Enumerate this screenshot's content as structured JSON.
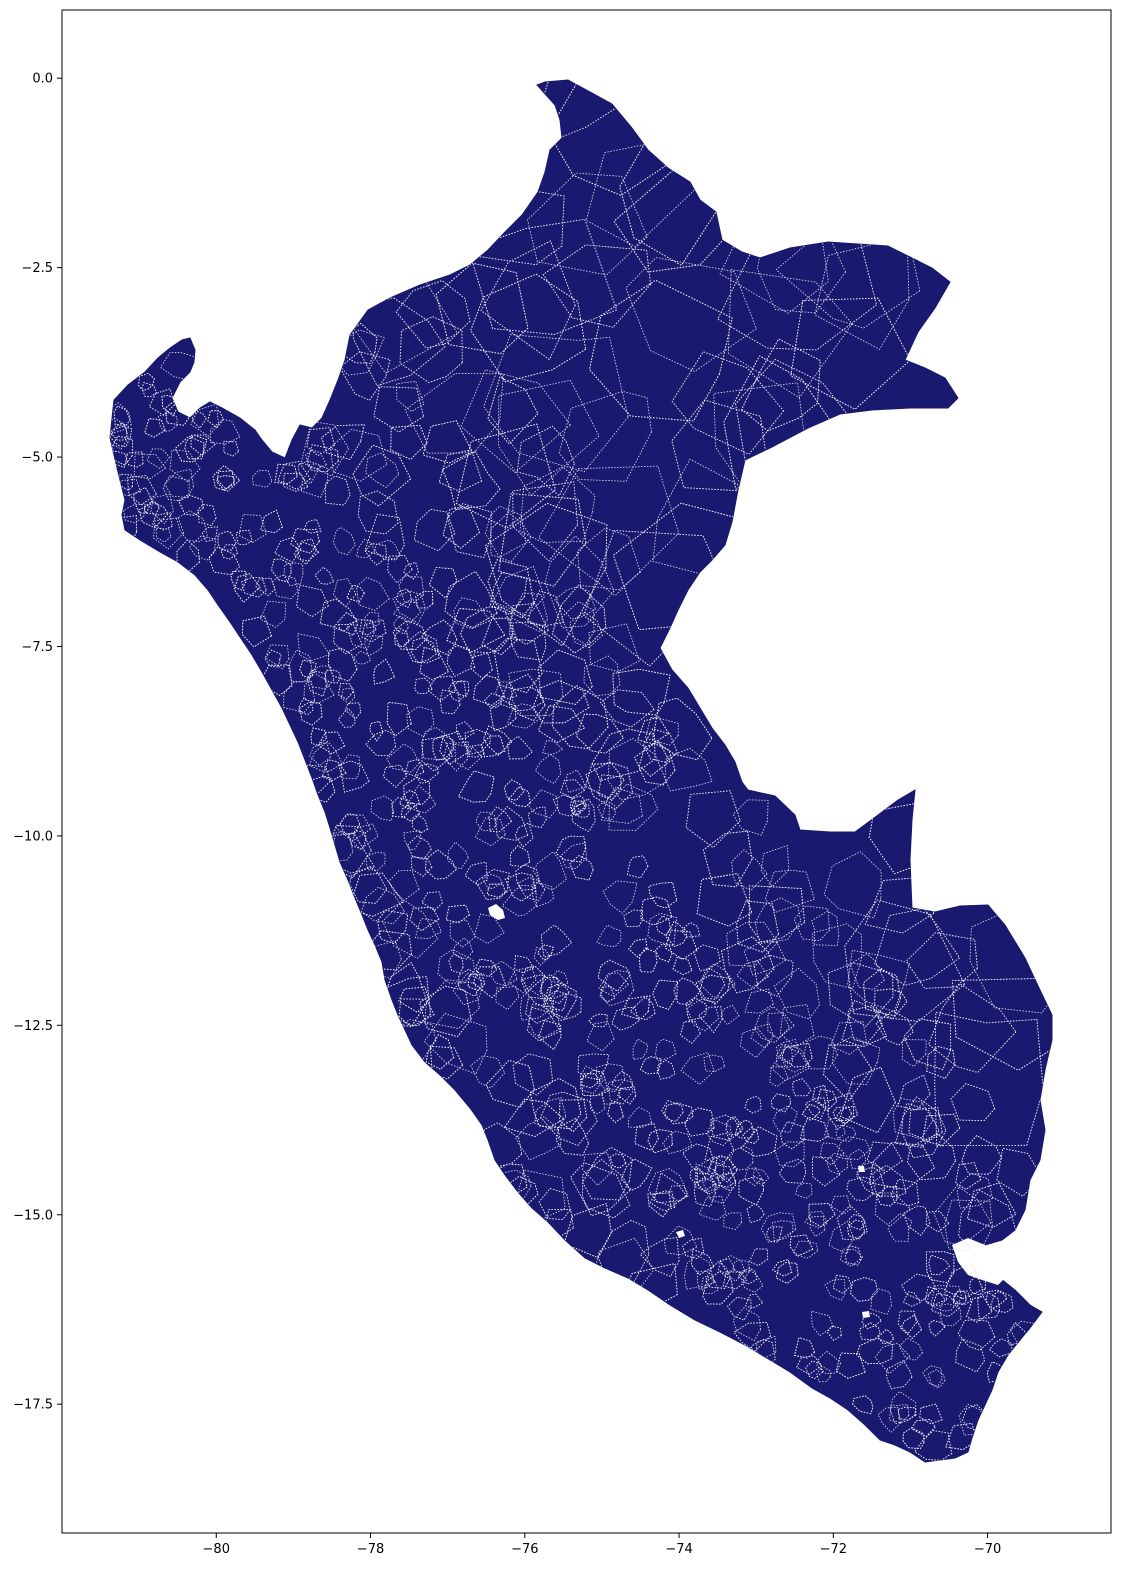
{
  "map": {
    "type": "choropleth-boundaries",
    "fill_color": "#191970",
    "boundary_color": "#e8e8f0",
    "boundary_style": "dotted",
    "background": "#ffffff",
    "grid": false,
    "legend": false,
    "xlim": [
      -82.0,
      -68.4
    ],
    "ylim": [
      -19.2,
      0.9
    ],
    "x_ticks": [
      {
        "value": -80,
        "label": "−80"
      },
      {
        "value": -78,
        "label": "−78"
      },
      {
        "value": -76,
        "label": "−76"
      },
      {
        "value": -74,
        "label": "−74"
      },
      {
        "value": -72,
        "label": "−72"
      },
      {
        "value": -70,
        "label": "−70"
      }
    ],
    "y_ticks": [
      {
        "value": 0.0,
        "label": "0.0"
      },
      {
        "value": -2.5,
        "label": "−2.5"
      },
      {
        "value": -5.0,
        "label": "−5.0"
      },
      {
        "value": -7.5,
        "label": "−7.5"
      },
      {
        "value": -10.0,
        "label": "−10.0"
      },
      {
        "value": -12.5,
        "label": "−12.5"
      },
      {
        "value": -15.0,
        "label": "−15.0"
      },
      {
        "value": -17.5,
        "label": "−17.5"
      }
    ]
  }
}
